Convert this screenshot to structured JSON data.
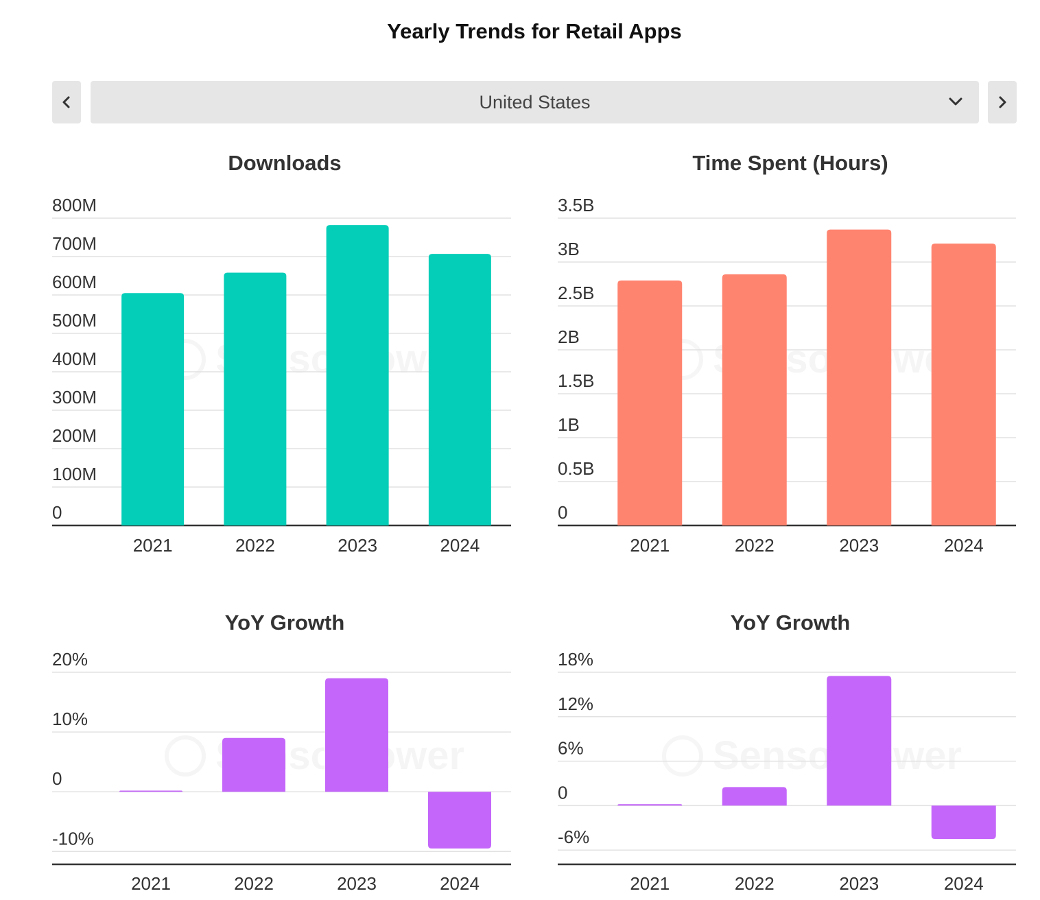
{
  "page_title": "Yearly Trends for Retail Apps",
  "selector": {
    "value": "United States",
    "prev_icon": "chevron-left-icon",
    "next_icon": "chevron-right-icon",
    "dropdown_icon": "chevron-down-icon"
  },
  "watermark": "SensorTower",
  "colors": {
    "downloads": "#05ceb8",
    "time_spent": "#ff8470",
    "growth": "#c466fa",
    "grid": "#e2e2e2",
    "axis": "#333333"
  },
  "chart_data": [
    {
      "id": "downloads",
      "type": "bar",
      "title": "Downloads",
      "categories": [
        "2021",
        "2022",
        "2023",
        "2024"
      ],
      "values": [
        605000000,
        658000000,
        782000000,
        707000000
      ],
      "yticks": [
        0,
        100000000,
        200000000,
        300000000,
        400000000,
        500000000,
        600000000,
        700000000,
        800000000
      ],
      "ytick_labels": [
        "0",
        "100M",
        "200M",
        "300M",
        "400M",
        "500M",
        "600M",
        "700M",
        "800M"
      ],
      "ylim": [
        0,
        800000000
      ]
    },
    {
      "id": "time_spent",
      "type": "bar",
      "title": "Time Spent (Hours)",
      "categories": [
        "2021",
        "2022",
        "2023",
        "2024"
      ],
      "values": [
        2790000000,
        2860000000,
        3370000000,
        3210000000
      ],
      "yticks": [
        0,
        500000000,
        1000000000,
        1500000000,
        2000000000,
        2500000000,
        3000000000,
        3500000000
      ],
      "ytick_labels": [
        "0",
        "0.5B",
        "1B",
        "1.5B",
        "2B",
        "2.5B",
        "3B",
        "3.5B"
      ],
      "ylim": [
        0,
        3500000000
      ]
    },
    {
      "id": "downloads_yoy",
      "type": "bar",
      "title": "YoY Growth",
      "categories": [
        "2021",
        "2022",
        "2023",
        "2024"
      ],
      "values": [
        0.2,
        9.0,
        19.0,
        -9.5
      ],
      "yticks": [
        -10,
        0,
        10,
        20
      ],
      "ytick_labels": [
        "-10%",
        "0",
        "10%",
        "20%"
      ],
      "ylim": [
        -11,
        20
      ]
    },
    {
      "id": "time_spent_yoy",
      "type": "bar",
      "title": "YoY Growth",
      "categories": [
        "2021",
        "2022",
        "2023",
        "2024"
      ],
      "values": [
        0.2,
        2.5,
        17.5,
        -4.5
      ],
      "yticks": [
        -6,
        0,
        6,
        12,
        18
      ],
      "ytick_labels": [
        "-6%",
        "0",
        "6%",
        "12%",
        "18%"
      ],
      "ylim": [
        -7,
        18
      ]
    }
  ]
}
